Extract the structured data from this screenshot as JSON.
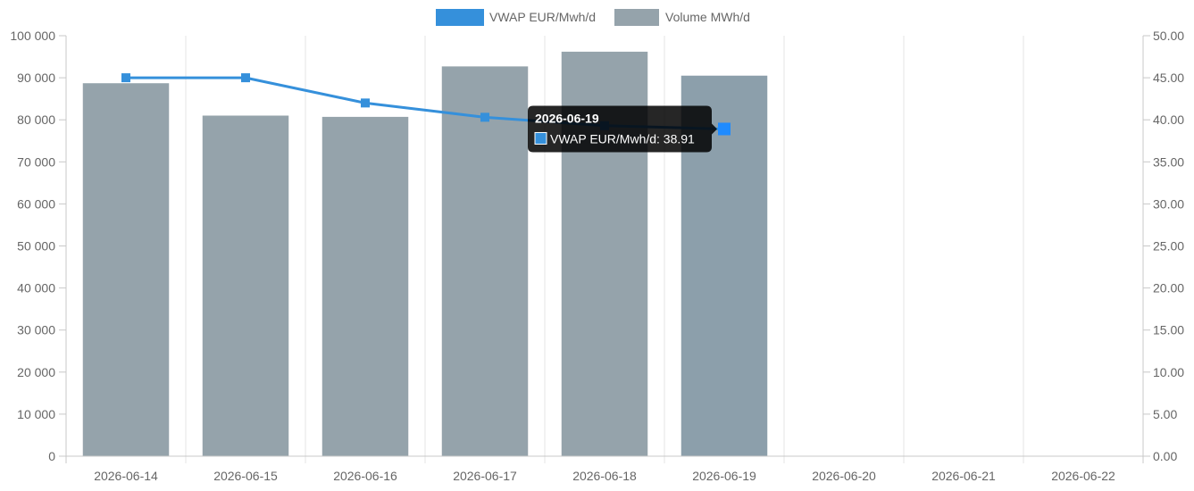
{
  "chart_data": {
    "type": "bar",
    "categories": [
      "2026-06-14",
      "2026-06-15",
      "2026-06-16",
      "2026-06-17",
      "2026-06-18",
      "2026-06-19",
      "2026-06-20",
      "2026-06-21",
      "2026-06-22"
    ],
    "series": [
      {
        "name": "Volume MWh/d",
        "type": "bar",
        "axis": "left",
        "color": "#95a3ab",
        "hover_color": "#8c9fab",
        "values": [
          88700,
          81000,
          80700,
          92700,
          96200,
          90500,
          null,
          null,
          null
        ]
      },
      {
        "name": "VWAP EUR/Mwh/d",
        "type": "line",
        "axis": "right",
        "color": "#3590db",
        "values": [
          45.0,
          45.0,
          42.0,
          40.3,
          39.3,
          38.91,
          null,
          null,
          null
        ]
      }
    ],
    "legend_order": [
      "VWAP EUR/Mwh/d",
      "Volume MWh/d"
    ],
    "legend_position": "top",
    "y_left": {
      "ylim": [
        0,
        100000
      ],
      "ticks": [
        0,
        10000,
        20000,
        30000,
        40000,
        50000,
        60000,
        70000,
        80000,
        90000,
        100000
      ],
      "tick_labels": [
        "0",
        "10 000",
        "20 000",
        "30 000",
        "40 000",
        "50 000",
        "60 000",
        "70 000",
        "80 000",
        "90 000",
        "100 000"
      ]
    },
    "y_right": {
      "ylim": [
        0,
        50
      ],
      "ticks": [
        0,
        5,
        10,
        15,
        20,
        25,
        30,
        35,
        40,
        45,
        50
      ],
      "tick_labels": [
        "0.00",
        "5.00",
        "10.00",
        "15.00",
        "20.00",
        "25.00",
        "30.00",
        "35.00",
        "40.00",
        "45.00",
        "50.00"
      ]
    },
    "grid": "vertical",
    "tooltip": {
      "category_index": 5,
      "title": "2026-06-19",
      "label": "VWAP EUR/Mwh/d: 38.91",
      "swatch_color": "#3590db"
    }
  }
}
